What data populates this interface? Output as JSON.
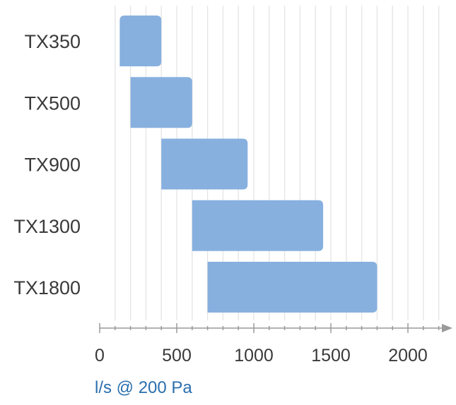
{
  "chart_data": {
    "type": "bar",
    "orientation": "horizontal",
    "style": "range",
    "categories": [
      "TX350",
      "TX500",
      "TX900",
      "TX1300",
      "TX1800"
    ],
    "ranges": [
      {
        "category": "TX350",
        "start": 130,
        "end": 400
      },
      {
        "category": "TX500",
        "start": 200,
        "end": 600
      },
      {
        "category": "TX900",
        "start": 400,
        "end": 960
      },
      {
        "category": "TX1300",
        "start": 600,
        "end": 1450
      },
      {
        "category": "TX1800",
        "start": 700,
        "end": 1800
      }
    ],
    "xlabel": "l/s @ 200 Pa",
    "ylabel": "",
    "title": "",
    "xlim": [
      0,
      2200
    ],
    "xticks": [
      0,
      500,
      1000,
      1500,
      2000
    ],
    "x_minor_step": 100,
    "grid": "vertical",
    "legend": "none"
  },
  "colors": {
    "bar": "#87b0df",
    "grid": "#e4e4e4",
    "axis": "#9a9a9a",
    "label": "#3a3a3a",
    "axis_title": "#2a6fae"
  }
}
